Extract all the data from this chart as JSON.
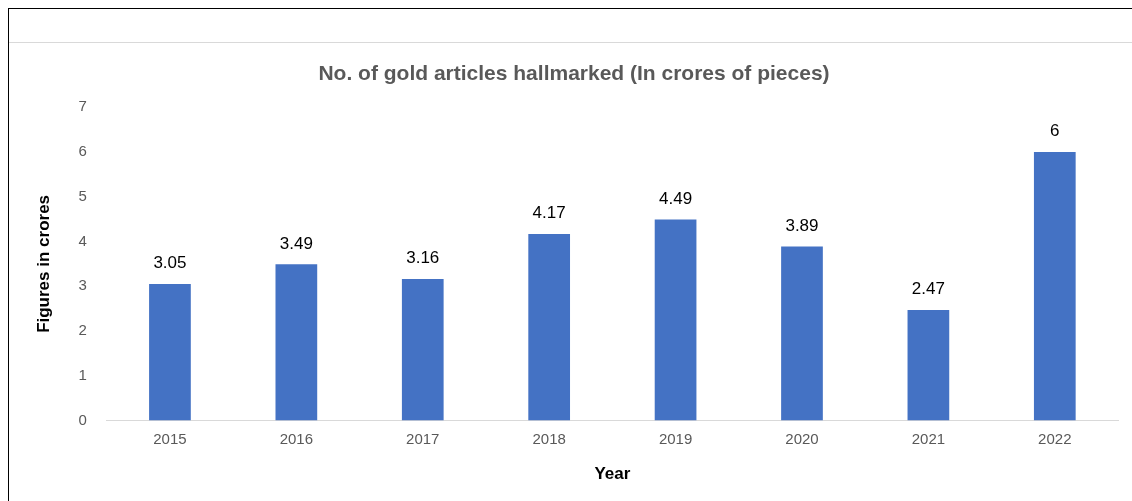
{
  "chart_data": {
    "type": "bar",
    "title": "No. of gold articles hallmarked (In crores of pieces)",
    "xlabel": "Year",
    "ylabel": "Figures in crores",
    "categories": [
      "2015",
      "2016",
      "2017",
      "2018",
      "2019",
      "2020",
      "2021",
      "2022"
    ],
    "values": [
      3.05,
      3.49,
      3.16,
      4.17,
      4.49,
      3.89,
      2.47,
      6
    ],
    "color": "#4472c4",
    "ylim": [
      0,
      7
    ],
    "yticks": [
      0,
      1,
      2,
      3,
      4,
      5,
      6,
      7
    ],
    "grid": false,
    "data_labels": true
  }
}
